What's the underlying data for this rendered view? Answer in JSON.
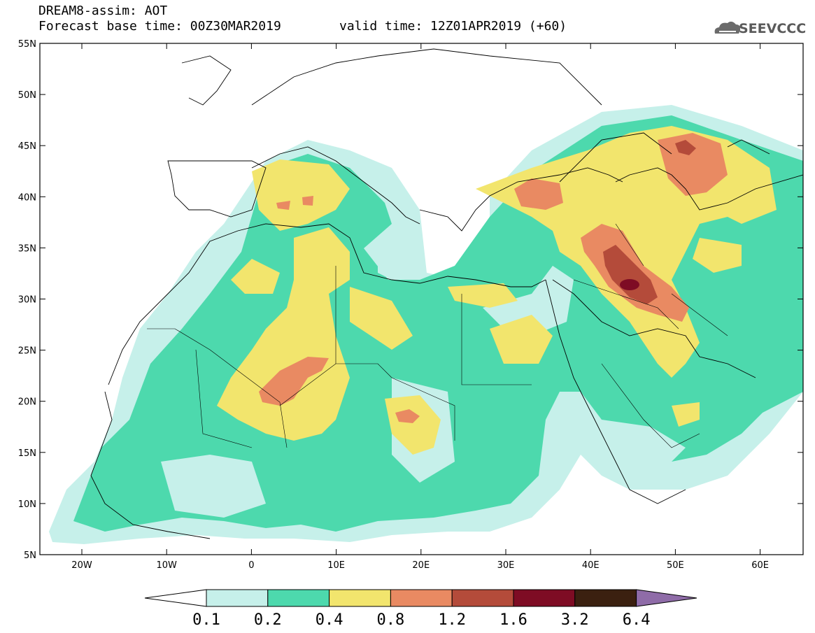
{
  "header": {
    "title": "DREAM8-assim: AOT",
    "base_time": "Forecast base time: 00Z30MAR2019",
    "valid_time": "valid time: 12Z01APR2019 (+60)"
  },
  "logo": {
    "text": "SEEVCCC",
    "icon": "cloud-logo-icon"
  },
  "axes": {
    "lat_labels": [
      "55N",
      "50N",
      "45N",
      "40N",
      "35N",
      "30N",
      "25N",
      "20N",
      "15N",
      "10N",
      "5N"
    ],
    "lon_labels": [
      "20W",
      "10W",
      "0",
      "10E",
      "20E",
      "30E",
      "40E",
      "50E",
      "60E"
    ]
  },
  "colorbar": {
    "labels": [
      "0.1",
      "0.2",
      "0.4",
      "0.8",
      "1.2",
      "1.6",
      "3.2",
      "6.4"
    ],
    "colors": [
      "#ffffff",
      "#c6f0ea",
      "#4dd9ad",
      "#f2e56d",
      "#e98a62",
      "#b44b3a",
      "#7e0c24",
      "#3b2010",
      "#8f6ca8"
    ]
  }
}
